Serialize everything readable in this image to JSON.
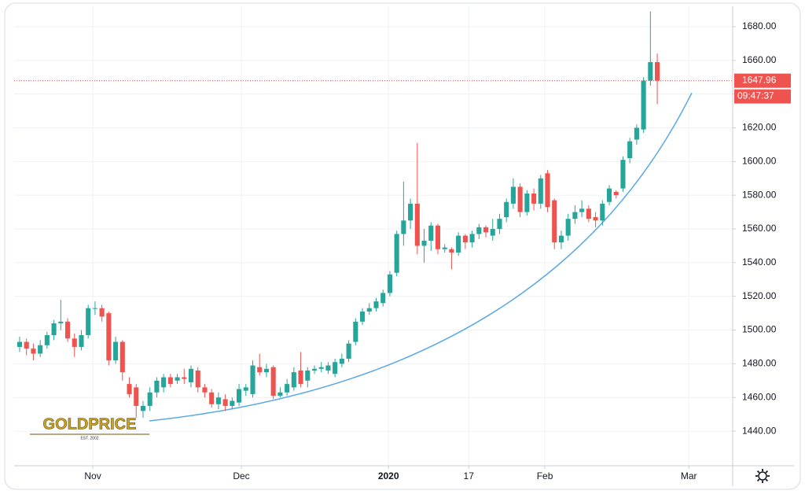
{
  "chart_data": {
    "type": "candlestick",
    "up_color": "#26a69a",
    "down_color": "#ef5350",
    "grid": true,
    "x": [
      0,
      1,
      2,
      3,
      4,
      5,
      6,
      7,
      8,
      9,
      10,
      11,
      12,
      13,
      14,
      15,
      16,
      17,
      18,
      19,
      20,
      21,
      22,
      23,
      24,
      25,
      26,
      27,
      28,
      29,
      30,
      31,
      32,
      33,
      34,
      35,
      36,
      37,
      38,
      39,
      40,
      41,
      42,
      43,
      44,
      45,
      46,
      47,
      48,
      49,
      50,
      51,
      52,
      53,
      54,
      55,
      56,
      57,
      58,
      59,
      60,
      61,
      62,
      63,
      64,
      65,
      66,
      67,
      68,
      69,
      70,
      71,
      72,
      73,
      74,
      75,
      76,
      77,
      78,
      79,
      80,
      81,
      82,
      83,
      84,
      85,
      86,
      87,
      88,
      89,
      90,
      91,
      92,
      93
    ],
    "open": [
      1490,
      1493,
      1489,
      1486,
      1491,
      1497,
      1504,
      1505,
      1495,
      1490,
      1497,
      1513,
      1513,
      1510,
      1482,
      1493,
      1468,
      1466,
      1452,
      1455,
      1463,
      1466,
      1472,
      1470,
      1472,
      1469,
      1476,
      1466,
      1463,
      1456,
      1459,
      1455,
      1457,
      1464,
      1462,
      1478,
      1475,
      1478,
      1461,
      1463,
      1466,
      1476,
      1470,
      1476,
      1477,
      1476,
      1474,
      1480,
      1483,
      1493,
      1505,
      1511,
      1513,
      1516,
      1522,
      1534,
      1557,
      1565,
      1575,
      1550,
      1553,
      1562,
      1548,
      1548,
      1546,
      1556,
      1552,
      1557,
      1561,
      1556,
      1560,
      1567,
      1575,
      1585,
      1570,
      1581,
      1575,
      1593,
      1577,
      1552,
      1556,
      1566,
      1570,
      1572,
      1567,
      1565,
      1576,
      1582,
      1584,
      1602,
      1613,
      1619,
      1648,
      1659
    ],
    "high": [
      1496,
      1495,
      1492,
      1494,
      1499,
      1506,
      1518,
      1507,
      1498,
      1500,
      1515,
      1517,
      1515,
      1511,
      1496,
      1494,
      1472,
      1468,
      1458,
      1466,
      1472,
      1474,
      1474,
      1474,
      1477,
      1479,
      1478,
      1468,
      1465,
      1463,
      1462,
      1460,
      1468,
      1468,
      1482,
      1486,
      1480,
      1479,
      1466,
      1471,
      1478,
      1487,
      1478,
      1479,
      1481,
      1481,
      1483,
      1486,
      1494,
      1507,
      1513,
      1516,
      1519,
      1524,
      1535,
      1559,
      1588,
      1578,
      1611,
      1560,
      1564,
      1563,
      1551,
      1549,
      1558,
      1557,
      1559,
      1563,
      1562,
      1566,
      1569,
      1578,
      1590,
      1587,
      1583,
      1584,
      1592,
      1595,
      1578,
      1559,
      1569,
      1574,
      1577,
      1574,
      1570,
      1577,
      1586,
      1583,
      1603,
      1614,
      1622,
      1650,
      1689,
      1664
    ],
    "low": [
      1487,
      1485,
      1482,
      1484,
      1489,
      1494,
      1500,
      1493,
      1484,
      1488,
      1495,
      1509,
      1505,
      1479,
      1480,
      1470,
      1460,
      1448,
      1448,
      1452,
      1460,
      1463,
      1466,
      1468,
      1468,
      1466,
      1463,
      1460,
      1454,
      1453,
      1452,
      1453,
      1455,
      1461,
      1460,
      1473,
      1472,
      1459,
      1460,
      1461,
      1464,
      1466,
      1466,
      1474,
      1475,
      1474,
      1472,
      1478,
      1481,
      1491,
      1503,
      1509,
      1511,
      1514,
      1520,
      1532,
      1550,
      1560,
      1545,
      1540,
      1547,
      1545,
      1546,
      1536,
      1544,
      1548,
      1549,
      1554,
      1555,
      1553,
      1557,
      1564,
      1572,
      1567,
      1568,
      1571,
      1572,
      1570,
      1548,
      1548,
      1553,
      1563,
      1567,
      1564,
      1561,
      1562,
      1574,
      1578,
      1582,
      1599,
      1610,
      1617,
      1645,
      1634
    ],
    "close": [
      1493,
      1489,
      1486,
      1491,
      1497,
      1504,
      1505,
      1495,
      1490,
      1497,
      1513,
      1513,
      1508,
      1482,
      1493,
      1475,
      1462,
      1455,
      1455,
      1463,
      1470,
      1472,
      1468,
      1472,
      1471,
      1477,
      1466,
      1463,
      1456,
      1460,
      1455,
      1458,
      1465,
      1466,
      1479,
      1475,
      1477,
      1461,
      1463,
      1468,
      1475,
      1468,
      1476,
      1477,
      1478,
      1479,
      1481,
      1483,
      1492,
      1505,
      1511,
      1513,
      1517,
      1522,
      1533,
      1557,
      1565,
      1575,
      1550,
      1553,
      1562,
      1548,
      1549,
      1546,
      1556,
      1552,
      1557,
      1561,
      1558,
      1560,
      1566,
      1576,
      1585,
      1570,
      1581,
      1575,
      1590,
      1573,
      1552,
      1556,
      1566,
      1570,
      1572,
      1566,
      1565,
      1575,
      1584,
      1580,
      1601,
      1612,
      1620,
      1648,
      1659,
      1647.96
    ],
    "xlim": [
      -0.8,
      104
    ],
    "xticks": [
      {
        "value": 10.67,
        "label": "Nov"
      },
      {
        "value": 32.34,
        "label": "Dec"
      },
      {
        "value": 53.8,
        "label": "2020"
      },
      {
        "value": 65.5,
        "label": "17"
      },
      {
        "value": 76.6,
        "label": "Feb"
      },
      {
        "value": 97.6,
        "label": "Mar"
      }
    ],
    "ylim": [
      1419.5,
      1692.1
    ],
    "yticks": [
      {
        "value": 1440,
        "label": "1440.00"
      },
      {
        "value": 1460,
        "label": "1460.00"
      },
      {
        "value": 1480,
        "label": "1480.00"
      },
      {
        "value": 1500,
        "label": "1500.00"
      },
      {
        "value": 1520,
        "label": "1520.00"
      },
      {
        "value": 1540,
        "label": "1540.00"
      },
      {
        "value": 1560,
        "label": "1560.00"
      },
      {
        "value": 1580,
        "label": "1580.00"
      },
      {
        "value": 1600,
        "label": "1600.00"
      },
      {
        "value": 1620,
        "label": "1620.00"
      },
      {
        "value": 1640,
        "label": "1640.00"
      },
      {
        "value": 1660,
        "label": "1660.00"
      },
      {
        "value": 1680,
        "label": "1680.00"
      }
    ],
    "last_price": 1647.96,
    "countdown": "09:47:37",
    "logo": {
      "name": "GOLDPRICE",
      "tagline": "EST. 2002"
    }
  }
}
